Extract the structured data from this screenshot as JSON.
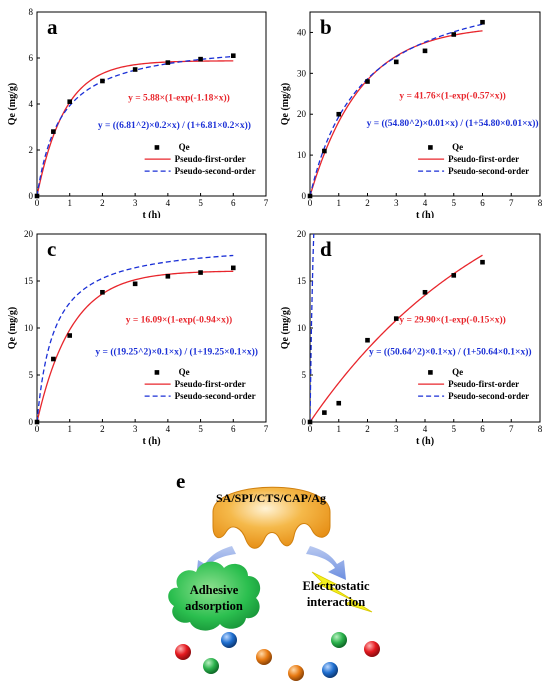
{
  "chart_data": [
    {
      "type": "scatter",
      "panel_label": "a",
      "title": "",
      "xlabel": "t (h)",
      "ylabel": "Qe (mg/g)",
      "xlim": [
        0,
        7
      ],
      "ylim": [
        0,
        8
      ],
      "xticks": [
        0,
        1,
        2,
        3,
        4,
        5,
        6,
        7
      ],
      "yticks": [
        0,
        2,
        4,
        6,
        8
      ],
      "points": {
        "name": "Qe",
        "x": [
          0,
          0.5,
          1,
          2,
          3,
          4,
          5,
          6
        ],
        "y": [
          0,
          2.8,
          4.1,
          5.0,
          5.5,
          5.8,
          5.95,
          6.1
        ]
      },
      "fits": [
        {
          "name": "Pseudo-first-order",
          "model": "pfo",
          "qe": 5.88,
          "k": 1.18,
          "color": "#e8262c",
          "style": "solid",
          "equation": "y = 5.88×(1-exp(-1.18×x))"
        },
        {
          "name": "Pseudo-second-order",
          "model": "pso",
          "qe": 6.81,
          "k": 0.2,
          "color": "#1a2fd6",
          "style": "dashed",
          "equation": "y = ((6.81^2)×0.2×x) / (1+6.81×0.2×x))"
        }
      ],
      "legend_position": "lower-right",
      "grid": false
    },
    {
      "type": "scatter",
      "panel_label": "b",
      "title": "",
      "xlabel": "t (h)",
      "ylabel": "Qe (mg/g)",
      "xlim": [
        0,
        8
      ],
      "ylim": [
        0,
        45
      ],
      "xticks": [
        0,
        1,
        2,
        3,
        4,
        5,
        6,
        7,
        8
      ],
      "yticks": [
        0,
        10,
        20,
        30,
        40
      ],
      "points": {
        "name": "Qe",
        "x": [
          0,
          0.5,
          1,
          2,
          3,
          4,
          5,
          6
        ],
        "y": [
          0,
          11.0,
          20.0,
          28.0,
          32.8,
          35.5,
          39.5,
          42.5
        ]
      },
      "fits": [
        {
          "name": "Pseudo-first-order",
          "model": "pfo",
          "qe": 41.76,
          "k": 0.57,
          "color": "#e8262c",
          "style": "solid",
          "equation": "y = 41.76×(1-exp(-0.57×x))"
        },
        {
          "name": "Pseudo-second-order",
          "model": "pso",
          "qe": 54.8,
          "k": 0.01,
          "color": "#1a2fd6",
          "style": "dashed",
          "equation": "y = ((54.80^2)×0.01×x) / (1+54.80×0.01×x))"
        }
      ],
      "legend_position": "lower-right",
      "grid": false
    },
    {
      "type": "scatter",
      "panel_label": "c",
      "title": "",
      "xlabel": "t (h)",
      "ylabel": "Qe (mg/g)",
      "xlim": [
        0,
        7
      ],
      "ylim": [
        0,
        20
      ],
      "xticks": [
        0,
        1,
        2,
        3,
        4,
        5,
        6,
        7
      ],
      "yticks": [
        0,
        5,
        10,
        15,
        20
      ],
      "points": {
        "name": "Qe",
        "x": [
          0,
          0.5,
          1,
          2,
          3,
          4,
          5,
          6
        ],
        "y": [
          0,
          6.7,
          9.2,
          13.8,
          14.7,
          15.5,
          15.9,
          16.4
        ]
      },
      "fits": [
        {
          "name": "Pseudo-first-order",
          "model": "pfo",
          "qe": 16.09,
          "k": 0.94,
          "color": "#e8262c",
          "style": "solid",
          "equation": "y = 16.09×(1-exp(-0.94×x))"
        },
        {
          "name": "Pseudo-second-order",
          "model": "pso",
          "qe": 19.25,
          "k": 0.1,
          "color": "#1a2fd6",
          "style": "dashed",
          "equation": "y = ((19.25^2)×0.1×x) / (1+19.25×0.1×x))"
        }
      ],
      "legend_position": "lower-right",
      "grid": false
    },
    {
      "type": "scatter",
      "panel_label": "d",
      "title": "",
      "xlabel": "t (h)",
      "ylabel": "Qe (mg/g)",
      "xlim": [
        0,
        8
      ],
      "ylim": [
        0,
        20
      ],
      "xticks": [
        0,
        1,
        2,
        3,
        4,
        5,
        6,
        7,
        8
      ],
      "yticks": [
        0,
        5,
        10,
        15,
        20
      ],
      "points": {
        "name": "Qe",
        "x": [
          0,
          0.5,
          1,
          2,
          3,
          4,
          5,
          6
        ],
        "y": [
          0,
          1.0,
          2.0,
          8.7,
          11.0,
          13.8,
          15.6,
          17.0
        ]
      },
      "fits": [
        {
          "name": "Pseudo-first-order",
          "model": "pfo",
          "qe": 29.9,
          "k": 0.15,
          "color": "#e8262c",
          "style": "solid",
          "equation": "y = 29.90×(1-exp(-0.15×x))"
        },
        {
          "name": "Pseudo-second-order",
          "model": "pso",
          "qe": 50.64,
          "k": 0.1,
          "color": "#1a2fd6",
          "style": "dashed",
          "equation": "y = ((50.64^2)×0.1×x) / (1+50.64×0.1×x))"
        }
      ],
      "legend_position": "lower-right",
      "grid": false
    }
  ],
  "schematic": {
    "panel_label": "e",
    "material": "SA/SPI/CTS/CAP/Ag",
    "mechanism_left": "Adhesive adsorption",
    "mechanism_left_lines": [
      "Adhesive",
      "adsorption"
    ],
    "mechanism_right": "Electrostatic interaction",
    "mechanism_right_lines": [
      "Electrostatic",
      "interaction"
    ],
    "colors": {
      "pad": "#f5a623",
      "arrow": "#8aa6e6",
      "cloud": "#21b34a",
      "lightning": "#f4f11e"
    },
    "ball_colors": [
      "#e4191f",
      "#1f6fd0",
      "#e87a12",
      "#2bb24c",
      "#e87a12",
      "#2bb24c",
      "#1f6fd0",
      "#e4191f"
    ]
  }
}
